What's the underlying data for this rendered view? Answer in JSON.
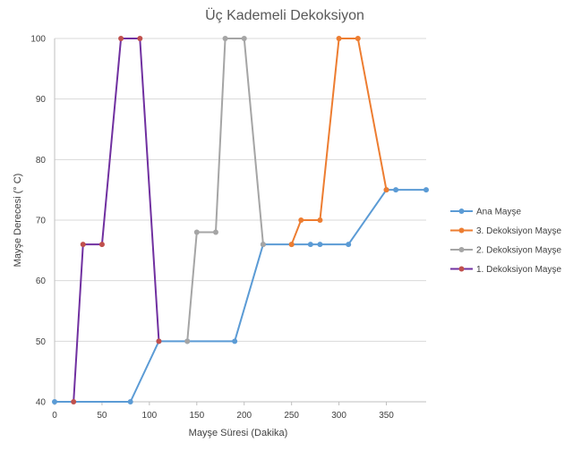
{
  "chart_data": {
    "type": "line",
    "title": "Üç Kademeli Dekoksiyon",
    "xlabel": "Mayşe Süresi (Dakika)",
    "ylabel": "Mayşe Derecesi (° C)",
    "xlim": [
      0,
      392
    ],
    "ylim": [
      40,
      100
    ],
    "xticks": [
      0,
      50,
      100,
      150,
      200,
      250,
      300,
      350
    ],
    "yticks": [
      40,
      50,
      60,
      70,
      80,
      90,
      100
    ],
    "grid": "horizontal",
    "legend_position": "right",
    "series": [
      {
        "name": "Ana Mayşe",
        "color": "#5B9BD5",
        "points": [
          [
            0,
            40
          ],
          [
            80,
            40
          ],
          [
            110,
            50
          ],
          [
            140,
            50
          ],
          [
            190,
            50
          ],
          [
            220,
            66
          ],
          [
            250,
            66
          ],
          [
            270,
            66
          ],
          [
            280,
            66
          ],
          [
            310,
            66
          ],
          [
            350,
            75
          ],
          [
            360,
            75
          ],
          [
            392,
            75
          ]
        ]
      },
      {
        "name": "3. Dekoksiyon Mayşe",
        "color": "#ED7D31",
        "points": [
          [
            250,
            66
          ],
          [
            260,
            70
          ],
          [
            280,
            70
          ],
          [
            300,
            100
          ],
          [
            320,
            100
          ],
          [
            350,
            75
          ]
        ]
      },
      {
        "name": "2. Dekoksiyon Mayşe",
        "color": "#A5A5A5",
        "points": [
          [
            140,
            50
          ],
          [
            150,
            68
          ],
          [
            170,
            68
          ],
          [
            180,
            100
          ],
          [
            200,
            100
          ],
          [
            220,
            66
          ]
        ]
      },
      {
        "name": "1. Dekoksiyon Mayşe",
        "color": "#7030A0",
        "marker_color": "#C0504D",
        "points": [
          [
            20,
            40
          ],
          [
            30,
            66
          ],
          [
            50,
            66
          ],
          [
            70,
            100
          ],
          [
            90,
            100
          ],
          [
            110,
            50
          ]
        ]
      }
    ]
  }
}
